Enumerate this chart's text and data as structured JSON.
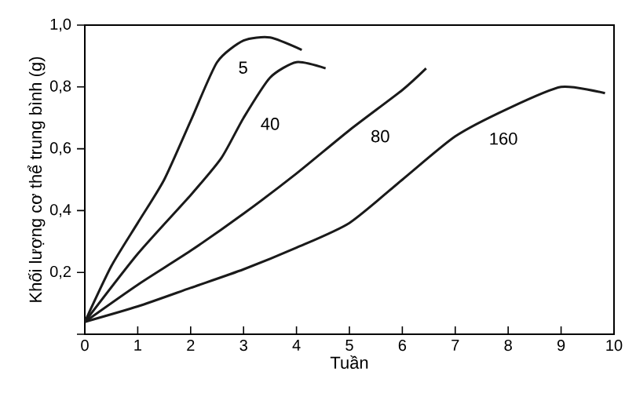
{
  "chart_data": {
    "type": "line",
    "xlabel": "Tuần",
    "ylabel": "Khối lượng cơ thể trung bình (g)",
    "xlim": [
      0,
      10
    ],
    "ylim": [
      0,
      1.0
    ],
    "xticks": [
      0,
      1,
      2,
      3,
      4,
      5,
      6,
      7,
      8,
      9,
      10
    ],
    "yticks": [
      {
        "value": 0,
        "label": null
      },
      {
        "value": 0.2,
        "label": "0,2"
      },
      {
        "value": 0.4,
        "label": "0,4"
      },
      {
        "value": 0.6,
        "label": "0,6"
      },
      {
        "value": 0.8,
        "label": "0,8"
      },
      {
        "value": 1.0,
        "label": "1,0"
      }
    ],
    "marker": "none",
    "line_style": "solid",
    "series": [
      {
        "name": "5",
        "color": "#1a1a1a",
        "x": [
          0,
          0.5,
          1,
          1.5,
          2,
          2.5,
          3,
          3.5,
          4.1
        ],
        "values": [
          0.04,
          0.22,
          0.36,
          0.5,
          0.69,
          0.88,
          0.95,
          0.96,
          0.92
        ]
      },
      {
        "name": "40",
        "color": "#1a1a1a",
        "x": [
          0,
          1,
          2,
          2.58,
          3,
          3.5,
          4,
          4.55
        ],
        "values": [
          0.04,
          0.26,
          0.45,
          0.57,
          0.7,
          0.83,
          0.88,
          0.86
        ]
      },
      {
        "name": "80",
        "color": "#1a1a1a",
        "x": [
          0,
          1,
          2,
          3,
          4,
          5,
          6,
          6.45
        ],
        "values": [
          0.04,
          0.16,
          0.27,
          0.39,
          0.52,
          0.66,
          0.79,
          0.86
        ]
      },
      {
        "name": "160",
        "color": "#1a1a1a",
        "x": [
          0,
          1,
          2,
          3,
          4,
          5,
          6,
          7,
          8,
          9,
          9.83
        ],
        "values": [
          0.04,
          0.09,
          0.15,
          0.21,
          0.28,
          0.36,
          0.5,
          0.64,
          0.73,
          0.8,
          0.78
        ]
      }
    ]
  }
}
